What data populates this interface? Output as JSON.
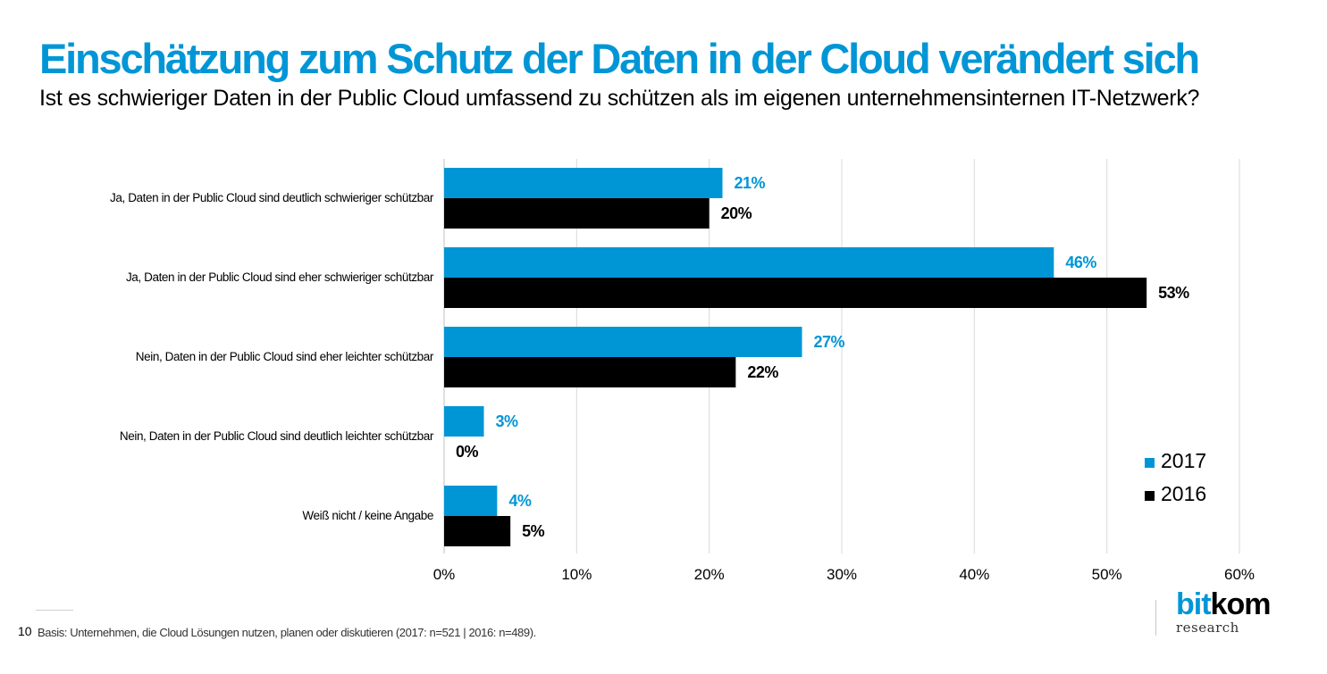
{
  "title": "Einschätzung zum Schutz der Daten in der Cloud verändert sich",
  "subtitle": "Ist es schwieriger Daten in der Public Cloud umfassend zu schützen als im eigenen unternehmensinternen IT-Netzwerk?",
  "chart_data": {
    "type": "bar",
    "orientation": "horizontal",
    "categories": [
      "Ja, Daten in der Public Cloud sind deutlich schwieriger schützbar",
      "Ja, Daten in der Public Cloud sind eher schwieriger schützbar",
      "Nein, Daten in der Public Cloud sind eher leichter schützbar",
      "Nein, Daten in der Public Cloud sind deutlich leichter schützbar",
      "Weiß nicht / keine Angabe"
    ],
    "series": [
      {
        "name": "2017",
        "values": [
          21,
          46,
          27,
          3,
          4
        ],
        "color": "#0096d6"
      },
      {
        "name": "2016",
        "values": [
          20,
          53,
          22,
          0,
          5
        ],
        "color": "#000000"
      }
    ],
    "value_suffix": "%",
    "xlim": [
      0,
      60
    ],
    "xticks": [
      0,
      10,
      20,
      30,
      40,
      50,
      60
    ],
    "tick_labels": [
      "0%",
      "10%",
      "20%",
      "30%",
      "40%",
      "50%",
      "60%"
    ],
    "grid": true,
    "legend_position": "right",
    "xlabel": "",
    "ylabel": ""
  },
  "footer": {
    "page_number": "10",
    "note": "Basis: Unternehmen, die Cloud Lösungen nutzen, planen oder diskutieren (2017: n=521 | 2016: n=489)."
  },
  "logo": {
    "main_bit": "bit",
    "main_kom": "kom",
    "sub": "research"
  }
}
